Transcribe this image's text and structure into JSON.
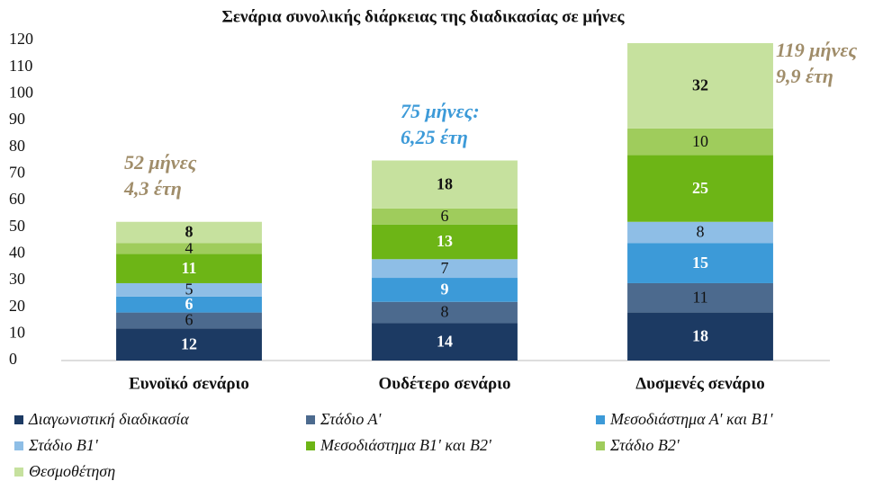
{
  "chart_data": {
    "type": "stacked_bar",
    "title": "Σενάρια συνολικής διάρκειας της διαδικασίας σε μήνες",
    "categories": [
      "Ευνοϊκό σενάριο",
      "Ουδέτερο σενάριο",
      "Δυσμενές σενάριο"
    ],
    "series": [
      {
        "name": "Διαγωνιστική διαδικασία",
        "color": "#1c3a63",
        "label_color": "#ffffff",
        "label_bold": true,
        "values": [
          12,
          14,
          18
        ]
      },
      {
        "name": "Στάδιο Α'",
        "color": "#4c6a8e",
        "label_color": "#111111",
        "label_bold": false,
        "values": [
          6,
          8,
          11
        ]
      },
      {
        "name": "Μεσοδιάστημα Α' και Β1'",
        "color": "#3c9ad8",
        "label_color": "#ffffff",
        "label_bold": true,
        "values": [
          6,
          9,
          15
        ]
      },
      {
        "name": "Στάδιο Β1'",
        "color": "#8ebee6",
        "label_color": "#111111",
        "label_bold": false,
        "values": [
          5,
          7,
          8
        ]
      },
      {
        "name": "Μεσοδιάστημα Β1' και Β2'",
        "color": "#6db516",
        "label_color": "#ffffff",
        "label_bold": true,
        "values": [
          11,
          13,
          25
        ]
      },
      {
        "name": "Στάδιο Β2'",
        "color": "#9fcc5c",
        "label_color": "#111111",
        "label_bold": false,
        "values": [
          4,
          6,
          10
        ]
      },
      {
        "name": "Θεσμοθέτηση",
        "color": "#c6e19e",
        "label_color": "#111111",
        "label_bold": true,
        "values": [
          8,
          18,
          32
        ]
      }
    ],
    "annotations": [
      {
        "lines": [
          "52 μήνες",
          "4,3 έτη"
        ],
        "color": "#a08d6a"
      },
      {
        "lines": [
          "75 μήνες:",
          "6,25 έτη"
        ],
        "color": "#3c9ad8"
      },
      {
        "lines": [
          "119 μήνες",
          "9,9 έτη"
        ],
        "color": "#a08d6a"
      }
    ],
    "ylim": [
      0,
      120
    ],
    "yticks": [
      0,
      10,
      20,
      30,
      40,
      50,
      60,
      70,
      80,
      90,
      100,
      110,
      120
    ],
    "grid": false,
    "legend": "bottom"
  }
}
